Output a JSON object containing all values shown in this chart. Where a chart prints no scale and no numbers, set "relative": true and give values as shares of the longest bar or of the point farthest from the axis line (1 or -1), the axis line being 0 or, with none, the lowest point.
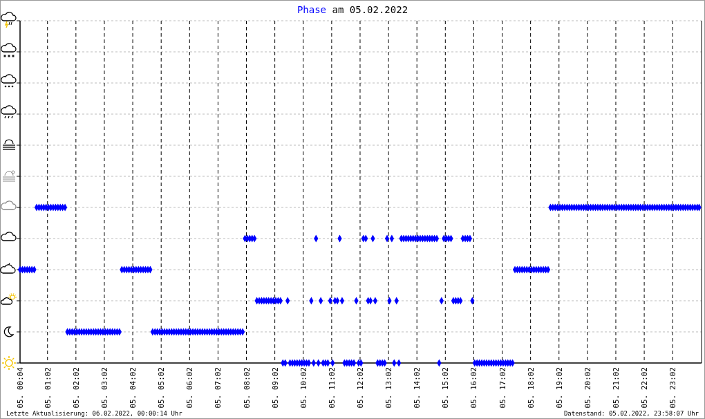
{
  "chart_data": {
    "type": "scatter",
    "title": "Phase am 05.02.2022",
    "relative": true,
    "color": "#0000ff",
    "marker": "diamond",
    "grid": true,
    "xlim": [
      "2022-02-05T00:04",
      "2022-02-06T00:03"
    ],
    "xticks": [
      {
        "value": "2022-02-05T00:04",
        "label": "05. 00:04"
      },
      {
        "value": "2022-02-05T01:02",
        "label": "05. 01:02"
      },
      {
        "value": "2022-02-05T02:02",
        "label": "05. 02:02"
      },
      {
        "value": "2022-02-05T03:02",
        "label": "05. 03:02"
      },
      {
        "value": "2022-02-05T04:02",
        "label": "05. 04:02"
      },
      {
        "value": "2022-02-05T05:02",
        "label": "05. 05:02"
      },
      {
        "value": "2022-02-05T06:02",
        "label": "05. 06:02"
      },
      {
        "value": "2022-02-05T07:02",
        "label": "05. 07:02"
      },
      {
        "value": "2022-02-05T08:02",
        "label": "05. 08:02"
      },
      {
        "value": "2022-02-05T09:02",
        "label": "05. 09:02"
      },
      {
        "value": "2022-02-05T10:02",
        "label": "05. 10:02"
      },
      {
        "value": "2022-02-05T11:02",
        "label": "05. 11:02"
      },
      {
        "value": "2022-02-05T12:02",
        "label": "05. 12:02"
      },
      {
        "value": "2022-02-05T13:02",
        "label": "05. 13:02"
      },
      {
        "value": "2022-02-05T14:02",
        "label": "05. 14:02"
      },
      {
        "value": "2022-02-05T15:02",
        "label": "05. 15:02"
      },
      {
        "value": "2022-02-05T16:02",
        "label": "05. 16:02"
      },
      {
        "value": "2022-02-05T17:02",
        "label": "05. 17:02"
      },
      {
        "value": "2022-02-05T18:02",
        "label": "05. 18:02"
      },
      {
        "value": "2022-02-05T19:02",
        "label": "05. 19:02"
      },
      {
        "value": "2022-02-05T20:02",
        "label": "05. 20:02"
      },
      {
        "value": "2022-02-05T21:02",
        "label": "05. 21:02"
      },
      {
        "value": "2022-02-05T22:02",
        "label": "05. 22:02"
      },
      {
        "value": "2022-02-05T23:02",
        "label": "05. 23:02"
      }
    ],
    "x": [
      "2022-02-05T00:04",
      "2022-02-05T00:09",
      "2022-02-05T00:14",
      "2022-02-05T00:19",
      "2022-02-05T00:24",
      "2022-02-05T00:29",
      "2022-02-05T00:34",
      "2022-02-05T00:39",
      "2022-02-05T00:44",
      "2022-02-05T00:49",
      "2022-02-05T00:54",
      "2022-02-05T00:59",
      "2022-02-05T01:04",
      "2022-02-05T01:09",
      "2022-02-05T01:14",
      "2022-02-05T01:19",
      "2022-02-05T01:24",
      "2022-02-05T01:29",
      "2022-02-05T01:34",
      "2022-02-05T01:39",
      "2022-02-05T01:44",
      "2022-02-05T01:49",
      "2022-02-05T01:54",
      "2022-02-05T01:59",
      "2022-02-05T02:04",
      "2022-02-05T02:09",
      "2022-02-05T02:14",
      "2022-02-05T02:19",
      "2022-02-05T02:24",
      "2022-02-05T02:29",
      "2022-02-05T02:34",
      "2022-02-05T02:39",
      "2022-02-05T02:44",
      "2022-02-05T02:49",
      "2022-02-05T02:54",
      "2022-02-05T02:59",
      "2022-02-05T03:04",
      "2022-02-05T03:09",
      "2022-02-05T03:14",
      "2022-02-05T03:19",
      "2022-02-05T03:24",
      "2022-02-05T03:29",
      "2022-02-05T03:34",
      "2022-02-05T03:39",
      "2022-02-05T03:44",
      "2022-02-05T03:49",
      "2022-02-05T03:54",
      "2022-02-05T03:59",
      "2022-02-05T04:04",
      "2022-02-05T04:09",
      "2022-02-05T04:14",
      "2022-02-05T04:19",
      "2022-02-05T04:24",
      "2022-02-05T04:29",
      "2022-02-05T04:34",
      "2022-02-05T04:39",
      "2022-02-05T04:44",
      "2022-02-05T04:49",
      "2022-02-05T04:54",
      "2022-02-05T04:59",
      "2022-02-05T05:04",
      "2022-02-05T05:09",
      "2022-02-05T05:14",
      "2022-02-05T05:19",
      "2022-02-05T05:24",
      "2022-02-05T05:29",
      "2022-02-05T05:34",
      "2022-02-05T05:39",
      "2022-02-05T05:44",
      "2022-02-05T05:49",
      "2022-02-05T05:54",
      "2022-02-05T05:59",
      "2022-02-05T06:04",
      "2022-02-05T06:09",
      "2022-02-05T06:14",
      "2022-02-05T06:19",
      "2022-02-05T06:24",
      "2022-02-05T06:29",
      "2022-02-05T06:34",
      "2022-02-05T06:39",
      "2022-02-05T06:44",
      "2022-02-05T06:49",
      "2022-02-05T06:54",
      "2022-02-05T06:59",
      "2022-02-05T07:04",
      "2022-02-05T07:09",
      "2022-02-05T07:14",
      "2022-02-05T07:19",
      "2022-02-05T07:24",
      "2022-02-05T07:29",
      "2022-02-05T07:34",
      "2022-02-05T07:39",
      "2022-02-05T07:44",
      "2022-02-05T07:49",
      "2022-02-05T07:54",
      "2022-02-05T07:59",
      "2022-02-05T08:04",
      "2022-02-05T08:09",
      "2022-02-05T08:14",
      "2022-02-05T08:19",
      "2022-02-05T08:24",
      "2022-02-05T08:29",
      "2022-02-05T08:34",
      "2022-02-05T08:39",
      "2022-02-05T08:44",
      "2022-02-05T08:49",
      "2022-02-05T08:54",
      "2022-02-05T08:59",
      "2022-02-05T09:04",
      "2022-02-05T09:09",
      "2022-02-05T09:14",
      "2022-02-05T09:19",
      "2022-02-05T09:24",
      "2022-02-05T09:29",
      "2022-02-05T09:34",
      "2022-02-05T09:39",
      "2022-02-05T09:44",
      "2022-02-05T09:49",
      "2022-02-05T09:54",
      "2022-02-05T09:59",
      "2022-02-05T10:04",
      "2022-02-05T10:09",
      "2022-02-05T10:14",
      "2022-02-05T10:19",
      "2022-02-05T10:24",
      "2022-02-05T10:29",
      "2022-02-05T10:34",
      "2022-02-05T10:39",
      "2022-02-05T10:44",
      "2022-02-05T10:49",
      "2022-02-05T10:54",
      "2022-02-05T10:59",
      "2022-02-05T11:04",
      "2022-02-05T11:09",
      "2022-02-05T11:14",
      "2022-02-05T11:19",
      "2022-02-05T11:24",
      "2022-02-05T11:29",
      "2022-02-05T11:34",
      "2022-02-05T11:39",
      "2022-02-05T11:44",
      "2022-02-05T11:49",
      "2022-02-05T11:54",
      "2022-02-05T11:59",
      "2022-02-05T12:04",
      "2022-02-05T12:09",
      "2022-02-05T12:14",
      "2022-02-05T12:19",
      "2022-02-05T12:24",
      "2022-02-05T12:29",
      "2022-02-05T12:34",
      "2022-02-05T12:39",
      "2022-02-05T12:44",
      "2022-02-05T12:49",
      "2022-02-05T12:54",
      "2022-02-05T12:59",
      "2022-02-05T13:04",
      "2022-02-05T13:09",
      "2022-02-05T13:14",
      "2022-02-05T13:19",
      "2022-02-05T13:24",
      "2022-02-05T13:29",
      "2022-02-05T13:34",
      "2022-02-05T13:39",
      "2022-02-05T13:44",
      "2022-02-05T13:49",
      "2022-02-05T13:54",
      "2022-02-05T13:59",
      "2022-02-05T14:04",
      "2022-02-05T14:09",
      "2022-02-05T14:14",
      "2022-02-05T14:19",
      "2022-02-05T14:24",
      "2022-02-05T14:29",
      "2022-02-05T14:34",
      "2022-02-05T14:39",
      "2022-02-05T14:44",
      "2022-02-05T14:49",
      "2022-02-05T14:54",
      "2022-02-05T14:59",
      "2022-02-05T15:04",
      "2022-02-05T15:09",
      "2022-02-05T15:14",
      "2022-02-05T15:19",
      "2022-02-05T15:24",
      "2022-02-05T15:29",
      "2022-02-05T15:34",
      "2022-02-05T15:39",
      "2022-02-05T15:44",
      "2022-02-05T15:49",
      "2022-02-05T15:54",
      "2022-02-05T15:59",
      "2022-02-05T16:04",
      "2022-02-05T16:09",
      "2022-02-05T16:14",
      "2022-02-05T16:19",
      "2022-02-05T16:24",
      "2022-02-05T16:29",
      "2022-02-05T16:34",
      "2022-02-05T16:39",
      "2022-02-05T16:44",
      "2022-02-05T16:49",
      "2022-02-05T16:54",
      "2022-02-05T16:59",
      "2022-02-05T17:04",
      "2022-02-05T17:09",
      "2022-02-05T17:14",
      "2022-02-05T17:19",
      "2022-02-05T17:24",
      "2022-02-05T17:29",
      "2022-02-05T17:34",
      "2022-02-05T17:39",
      "2022-02-05T17:44",
      "2022-02-05T17:49",
      "2022-02-05T17:54",
      "2022-02-05T17:59",
      "2022-02-05T18:04",
      "2022-02-05T18:09",
      "2022-02-05T18:14",
      "2022-02-05T18:19",
      "2022-02-05T18:24",
      "2022-02-05T18:29",
      "2022-02-05T18:34",
      "2022-02-05T18:39",
      "2022-02-05T18:44",
      "2022-02-05T18:49",
      "2022-02-05T18:54",
      "2022-02-05T18:59",
      "2022-02-05T19:04",
      "2022-02-05T19:09",
      "2022-02-05T19:14",
      "2022-02-05T19:19",
      "2022-02-05T19:24",
      "2022-02-05T19:29",
      "2022-02-05T19:34",
      "2022-02-05T19:39",
      "2022-02-05T19:44",
      "2022-02-05T19:49",
      "2022-02-05T19:54",
      "2022-02-05T19:59",
      "2022-02-05T20:04",
      "2022-02-05T20:09",
      "2022-02-05T20:14",
      "2022-02-05T20:19",
      "2022-02-05T20:24",
      "2022-02-05T20:29",
      "2022-02-05T20:34",
      "2022-02-05T20:39",
      "2022-02-05T20:44",
      "2022-02-05T20:49",
      "2022-02-05T20:54",
      "2022-02-05T20:59",
      "2022-02-05T21:04",
      "2022-02-05T21:09",
      "2022-02-05T21:14",
      "2022-02-05T21:19",
      "2022-02-05T21:24",
      "2022-02-05T21:29",
      "2022-02-05T21:34",
      "2022-02-05T21:39",
      "2022-02-05T21:44",
      "2022-02-05T21:49",
      "2022-02-05T21:54",
      "2022-02-05T21:59",
      "2022-02-05T22:04",
      "2022-02-05T22:09",
      "2022-02-05T22:14",
      "2022-02-05T22:19",
      "2022-02-05T22:24",
      "2022-02-05T22:29",
      "2022-02-05T22:34",
      "2022-02-05T22:39",
      "2022-02-05T22:44",
      "2022-02-05T22:49",
      "2022-02-05T22:54",
      "2022-02-05T22:59",
      "2022-02-05T23:04",
      "2022-02-05T23:09",
      "2022-02-05T23:14",
      "2022-02-05T23:19",
      "2022-02-05T23:24",
      "2022-02-05T23:29",
      "2022-02-05T23:34",
      "2022-02-05T23:39",
      "2022-02-05T23:44",
      "2022-02-05T23:49",
      "2022-02-05T23:54",
      "2022-02-05T23:58"
    ],
    "values": [
      0.6,
      0.6,
      0.6,
      0.6,
      0.6,
      0.6,
      0.6,
      1,
      1,
      1,
      1,
      1,
      1,
      1,
      1,
      1,
      1,
      1,
      1,
      1,
      0.2,
      0.2,
      0.2,
      0.2,
      0.2,
      0.2,
      0.2,
      0.2,
      0.2,
      0.2,
      0.2,
      0.2,
      0.2,
      0.2,
      0.2,
      0.2,
      0.2,
      0.2,
      0.2,
      0.2,
      0.2,
      0.2,
      0.2,
      0.6,
      0.6,
      0.6,
      0.6,
      0.6,
      0.6,
      0.6,
      0.6,
      0.6,
      0.6,
      0.6,
      0.6,
      0.6,
      0.2,
      0.2,
      0.2,
      0.2,
      0.2,
      0.2,
      0.2,
      0.2,
      0.2,
      0.2,
      0.2,
      0.2,
      0.2,
      0.2,
      0.2,
      0.2,
      0.2,
      0.2,
      0.2,
      0.2,
      0.2,
      0.2,
      0.2,
      0.2,
      0.2,
      0.2,
      0.2,
      0.2,
      0.2,
      0.2,
      0.2,
      0.2,
      0.2,
      0.2,
      0.2,
      0.2,
      0.2,
      0.2,
      0.2,
      0.8,
      0.8,
      0.8,
      0.8,
      0.8,
      0.4,
      0.4,
      0.4,
      0.4,
      0.4,
      0.4,
      0.4,
      0.4,
      0.4,
      0.4,
      0.4,
      0,
      0,
      0.4,
      0,
      0,
      0,
      0,
      0,
      0,
      0,
      0,
      0,
      0.4,
      0,
      0.8,
      0,
      0.4,
      0,
      0,
      0,
      0.4,
      0,
      0.4,
      0.4,
      0.8,
      0.4,
      0,
      0,
      0,
      0,
      0,
      0.4,
      0,
      0,
      0.8,
      0.8,
      0.4,
      0.4,
      0.8,
      0.4,
      0,
      0,
      0,
      0,
      0.8,
      0.4,
      0.8,
      0,
      0.4,
      0,
      0.8,
      0.8,
      0.8,
      0.8,
      0.8,
      0.8,
      0.8,
      0.8,
      0.8,
      0.8,
      0.8,
      0.8,
      0.8,
      0.8,
      0.8,
      0.8,
      0,
      0.4,
      0.8,
      0.8,
      0.8,
      0.8,
      0.4,
      0.4,
      0.4,
      0.4,
      0.8,
      0.8,
      0.8,
      0.8,
      0.4,
      0,
      0,
      0,
      0,
      0,
      0,
      0,
      0,
      0,
      0,
      0,
      0,
      0,
      0,
      0,
      0,
      0,
      0.6,
      0.6,
      0.6,
      0.6,
      0.6,
      0.6,
      0.6,
      0.6,
      0.6,
      0.6,
      0.6,
      0.6,
      0.6,
      0.6,
      0.6,
      1,
      1,
      1,
      1,
      1,
      1,
      1,
      1,
      1,
      1,
      1,
      1,
      1,
      1,
      1,
      1,
      1,
      1,
      1,
      1,
      1,
      1,
      1,
      1,
      1,
      1,
      1,
      1,
      1,
      1,
      1,
      1,
      1,
      1,
      1,
      1,
      1,
      1,
      1,
      1,
      1,
      1,
      1,
      1,
      1,
      1,
      1,
      1,
      1,
      1,
      1,
      1,
      1,
      1,
      1,
      1,
      1,
      1,
      1,
      1,
      1,
      1,
      1,
      1
    ],
    "annotations": [
      "Letzte Aktualisierung: 06.02.2022, 00:00:14 Uhr",
      "Datenstand: 05.02.2022, 23:58:07 Uhr"
    ]
  }
}
